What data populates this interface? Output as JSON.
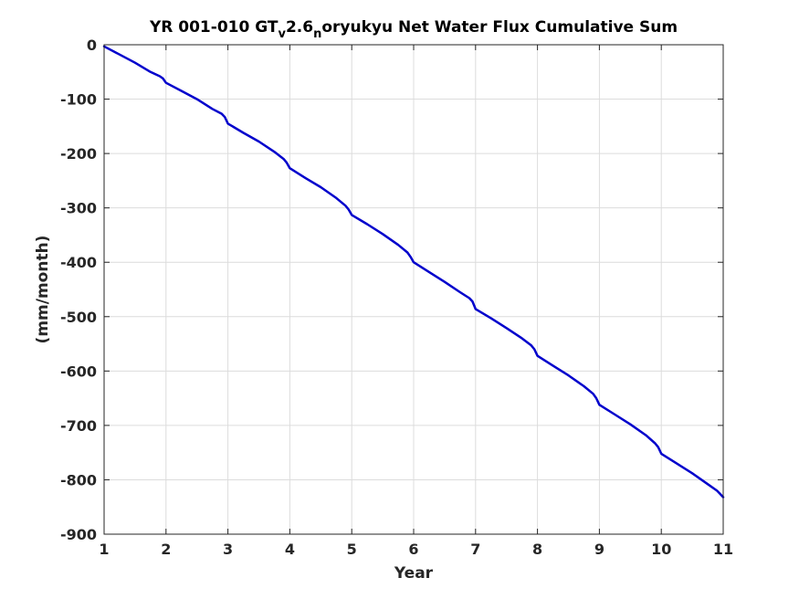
{
  "chart_data": {
    "type": "line",
    "title_parts": {
      "a": "YR 001-010 GT",
      "sub1": "v",
      "b": "2.6",
      "sub2": "n",
      "c": "oryukyu Net Water Flux Cumulative Sum"
    },
    "xlabel": "Year",
    "ylabel": "(mm/month)",
    "xlim": [
      1,
      11
    ],
    "ylim": [
      -900,
      0
    ],
    "xticks": [
      1,
      2,
      3,
      4,
      5,
      6,
      7,
      8,
      9,
      10,
      11
    ],
    "yticks": [
      0,
      -100,
      -200,
      -300,
      -400,
      -500,
      -600,
      -700,
      -800,
      -900
    ],
    "grid": true,
    "series": [
      {
        "color": "#0000cc",
        "x": [
          1.0,
          1.25,
          1.5,
          1.75,
          1.9,
          1.95,
          2.0,
          2.25,
          2.5,
          2.75,
          2.9,
          2.95,
          3.0,
          3.25,
          3.5,
          3.75,
          3.9,
          3.95,
          4.0,
          4.25,
          4.5,
          4.75,
          4.9,
          4.95,
          5.0,
          5.25,
          5.5,
          5.75,
          5.9,
          5.95,
          6.0,
          6.25,
          6.5,
          6.75,
          6.9,
          6.95,
          7.0,
          7.25,
          7.5,
          7.75,
          7.9,
          7.95,
          8.0,
          8.25,
          8.5,
          8.75,
          8.9,
          8.95,
          9.0,
          9.25,
          9.5,
          9.75,
          9.9,
          9.95,
          10.0,
          10.25,
          10.5,
          10.75,
          10.9,
          10.95,
          11.0
        ],
        "y": [
          -3,
          -18,
          -33,
          -50,
          -58,
          -62,
          -70,
          -85,
          -100,
          -118,
          -127,
          -133,
          -145,
          -162,
          -178,
          -197,
          -210,
          -217,
          -227,
          -245,
          -262,
          -282,
          -296,
          -303,
          -313,
          -330,
          -348,
          -368,
          -382,
          -390,
          -400,
          -418,
          -436,
          -455,
          -466,
          -472,
          -486,
          -503,
          -521,
          -540,
          -553,
          -560,
          -572,
          -590,
          -608,
          -628,
          -642,
          -650,
          -662,
          -680,
          -698,
          -718,
          -733,
          -740,
          -752,
          -770,
          -788,
          -808,
          -820,
          -826,
          -832
        ]
      }
    ]
  }
}
